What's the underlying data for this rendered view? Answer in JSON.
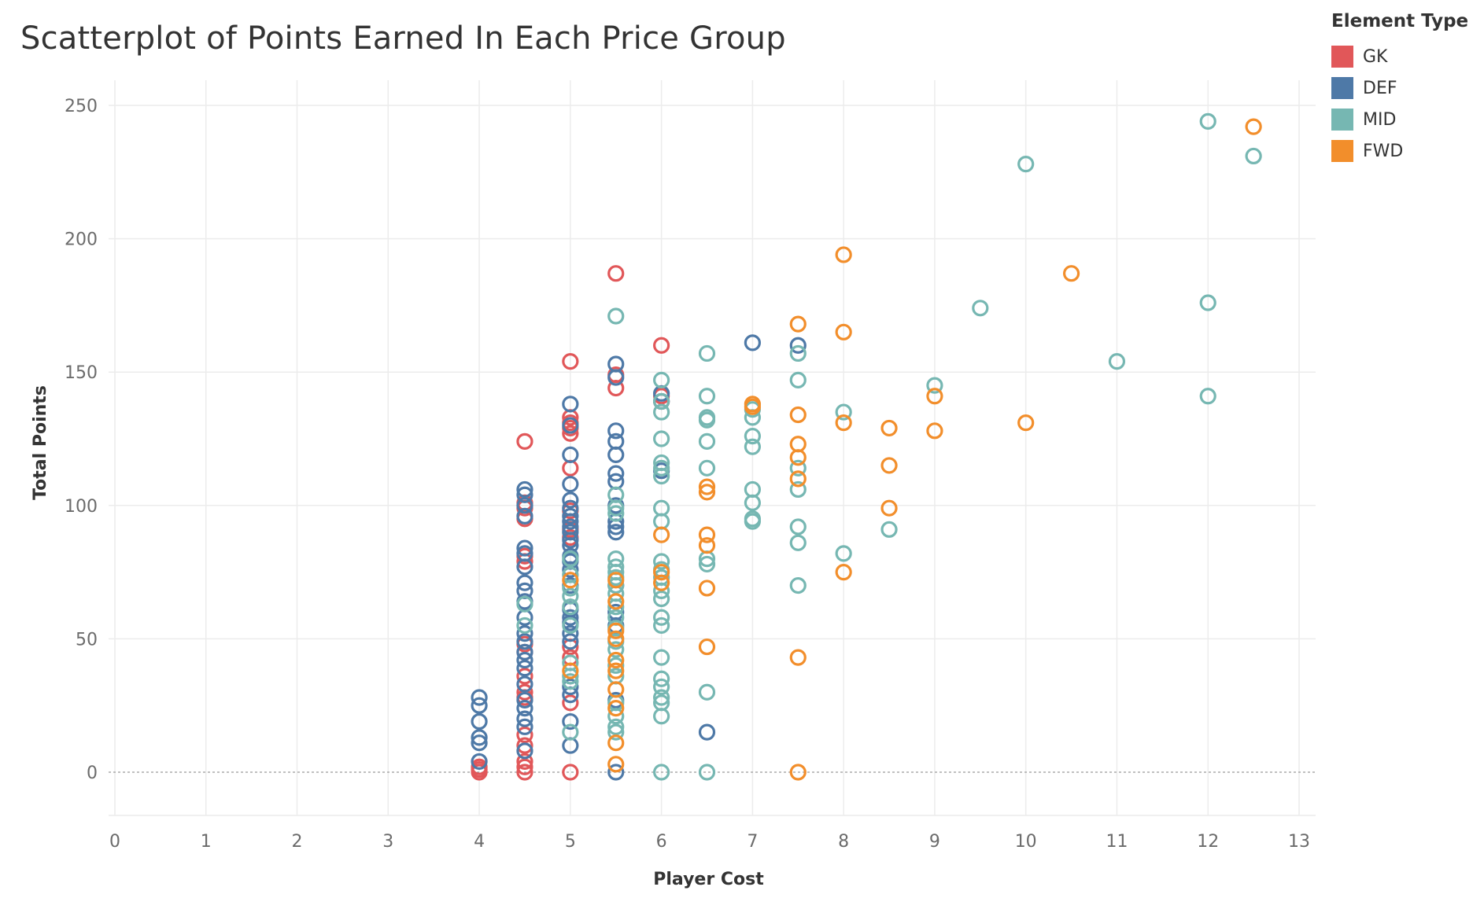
{
  "chart_data": {
    "type": "scatter",
    "title": "Scatterplot of Points Earned In Each Price Group",
    "xlabel": "Player Cost",
    "ylabel": "Total Points",
    "xlim": [
      0,
      13
    ],
    "ylim": [
      -16,
      260
    ],
    "x_ticks": [
      "0",
      "1",
      "2",
      "3",
      "4",
      "5",
      "6",
      "7",
      "8",
      "9",
      "10",
      "11",
      "12",
      "13"
    ],
    "y_ticks": [
      "0",
      "50",
      "100",
      "150",
      "200",
      "250"
    ],
    "grid": true,
    "marker": "open-circle",
    "legend": {
      "title": "Element Type",
      "placement": "top-right"
    },
    "series": [
      {
        "name": "GK",
        "color": "#e15759",
        "points": [
          [
            4,
            0
          ],
          [
            4,
            1
          ],
          [
            4,
            2
          ],
          [
            4.5,
            124
          ],
          [
            4.5,
            101
          ],
          [
            4.5,
            99
          ],
          [
            4.5,
            95
          ],
          [
            4.5,
            81
          ],
          [
            4.5,
            79
          ],
          [
            4.5,
            48
          ],
          [
            4.5,
            45
          ],
          [
            4.5,
            36
          ],
          [
            4.5,
            30
          ],
          [
            4.5,
            28
          ],
          [
            4.5,
            14
          ],
          [
            4.5,
            10
          ],
          [
            4.5,
            4
          ],
          [
            4.5,
            2
          ],
          [
            4.5,
            0
          ],
          [
            5,
            154
          ],
          [
            5,
            133
          ],
          [
            5,
            131
          ],
          [
            5,
            129
          ],
          [
            5,
            127
          ],
          [
            5,
            114
          ],
          [
            5,
            98
          ],
          [
            5,
            91
          ],
          [
            5,
            88
          ],
          [
            5,
            47
          ],
          [
            5,
            43
          ],
          [
            5,
            26
          ],
          [
            5,
            0
          ],
          [
            5.5,
            187
          ],
          [
            5.5,
            149
          ],
          [
            5.5,
            144
          ],
          [
            6,
            160
          ],
          [
            6,
            141
          ],
          [
            6,
            139
          ]
        ]
      },
      {
        "name": "DEF",
        "color": "#4e79a7",
        "points": [
          [
            4,
            28
          ],
          [
            4,
            25
          ],
          [
            4,
            19
          ],
          [
            4,
            13
          ],
          [
            4,
            11
          ],
          [
            4,
            4
          ],
          [
            4.5,
            106
          ],
          [
            4.5,
            104
          ],
          [
            4.5,
            100
          ],
          [
            4.5,
            96
          ],
          [
            4.5,
            84
          ],
          [
            4.5,
            82
          ],
          [
            4.5,
            77
          ],
          [
            4.5,
            71
          ],
          [
            4.5,
            68
          ],
          [
            4.5,
            64
          ],
          [
            4.5,
            58
          ],
          [
            4.5,
            52
          ],
          [
            4.5,
            49
          ],
          [
            4.5,
            45
          ],
          [
            4.5,
            42
          ],
          [
            4.5,
            39
          ],
          [
            4.5,
            33
          ],
          [
            4.5,
            27
          ],
          [
            4.5,
            24
          ],
          [
            4.5,
            20
          ],
          [
            4.5,
            17
          ],
          [
            4.5,
            8
          ],
          [
            5,
            138
          ],
          [
            5,
            130
          ],
          [
            5,
            119
          ],
          [
            5,
            108
          ],
          [
            5,
            102
          ],
          [
            5,
            99
          ],
          [
            5,
            96
          ],
          [
            5,
            94
          ],
          [
            5,
            92
          ],
          [
            5,
            90
          ],
          [
            5,
            87
          ],
          [
            5,
            85
          ],
          [
            5,
            81
          ],
          [
            5,
            79
          ],
          [
            5,
            76
          ],
          [
            5,
            70
          ],
          [
            5,
            61
          ],
          [
            5,
            58
          ],
          [
            5,
            56
          ],
          [
            5,
            52
          ],
          [
            5,
            49
          ],
          [
            5,
            32
          ],
          [
            5,
            29
          ],
          [
            5,
            19
          ],
          [
            5,
            10
          ],
          [
            5.5,
            153
          ],
          [
            5.5,
            148
          ],
          [
            5.5,
            128
          ],
          [
            5.5,
            124
          ],
          [
            5.5,
            119
          ],
          [
            5.5,
            112
          ],
          [
            5.5,
            109
          ],
          [
            5.5,
            100
          ],
          [
            5.5,
            94
          ],
          [
            5.5,
            92
          ],
          [
            5.5,
            90
          ],
          [
            5.5,
            70
          ],
          [
            5.5,
            60
          ],
          [
            5.5,
            55
          ],
          [
            5.5,
            27
          ],
          [
            5.5,
            0
          ],
          [
            6,
            142
          ],
          [
            6,
            139
          ],
          [
            6,
            113
          ],
          [
            6.5,
            15
          ],
          [
            7,
            161
          ],
          [
            7.5,
            160
          ]
        ]
      },
      {
        "name": "MID",
        "color": "#76b7b2",
        "points": [
          [
            4.5,
            63
          ],
          [
            4.5,
            55
          ],
          [
            5,
            80
          ],
          [
            5,
            74
          ],
          [
            5,
            69
          ],
          [
            5,
            66
          ],
          [
            5,
            62
          ],
          [
            5,
            55
          ],
          [
            5,
            41
          ],
          [
            5,
            36
          ],
          [
            5,
            34
          ],
          [
            5,
            15
          ],
          [
            5.5,
            171
          ],
          [
            5.5,
            104
          ],
          [
            5.5,
            99
          ],
          [
            5.5,
            97
          ],
          [
            5.5,
            80
          ],
          [
            5.5,
            77
          ],
          [
            5.5,
            75
          ],
          [
            5.5,
            73
          ],
          [
            5.5,
            70
          ],
          [
            5.5,
            67
          ],
          [
            5.5,
            62
          ],
          [
            5.5,
            58
          ],
          [
            5.5,
            54
          ],
          [
            5.5,
            49
          ],
          [
            5.5,
            46
          ],
          [
            5.5,
            40
          ],
          [
            5.5,
            36
          ],
          [
            5.5,
            26
          ],
          [
            5.5,
            21
          ],
          [
            5.5,
            17
          ],
          [
            5.5,
            15
          ],
          [
            6,
            147
          ],
          [
            6,
            139
          ],
          [
            6,
            135
          ],
          [
            6,
            125
          ],
          [
            6,
            116
          ],
          [
            6,
            114
          ],
          [
            6,
            111
          ],
          [
            6,
            99
          ],
          [
            6,
            94
          ],
          [
            6,
            79
          ],
          [
            6,
            76
          ],
          [
            6,
            73
          ],
          [
            6,
            68
          ],
          [
            6,
            65
          ],
          [
            6,
            58
          ],
          [
            6,
            55
          ],
          [
            6,
            43
          ],
          [
            6,
            35
          ],
          [
            6,
            32
          ],
          [
            6,
            28
          ],
          [
            6,
            26
          ],
          [
            6,
            21
          ],
          [
            6,
            0
          ],
          [
            6.5,
            157
          ],
          [
            6.5,
            141
          ],
          [
            6.5,
            133
          ],
          [
            6.5,
            132
          ],
          [
            6.5,
            124
          ],
          [
            6.5,
            114
          ],
          [
            6.5,
            80
          ],
          [
            6.5,
            78
          ],
          [
            6.5,
            30
          ],
          [
            6.5,
            0
          ],
          [
            7,
            136
          ],
          [
            7,
            133
          ],
          [
            7,
            126
          ],
          [
            7,
            122
          ],
          [
            7,
            106
          ],
          [
            7,
            101
          ],
          [
            7,
            95
          ],
          [
            7,
            94
          ],
          [
            7.5,
            157
          ],
          [
            7.5,
            147
          ],
          [
            7.5,
            114
          ],
          [
            7.5,
            106
          ],
          [
            7.5,
            92
          ],
          [
            7.5,
            86
          ],
          [
            7.5,
            70
          ],
          [
            8,
            135
          ],
          [
            8,
            82
          ],
          [
            8.5,
            91
          ],
          [
            9,
            145
          ],
          [
            9.5,
            174
          ],
          [
            10,
            228
          ],
          [
            11,
            154
          ],
          [
            12,
            244
          ],
          [
            12,
            176
          ],
          [
            12,
            141
          ],
          [
            12.5,
            231
          ]
        ]
      },
      {
        "name": "FWD",
        "color": "#f28e2b",
        "points": [
          [
            5,
            72
          ],
          [
            5,
            38
          ],
          [
            5.5,
            72
          ],
          [
            5.5,
            64
          ],
          [
            5.5,
            53
          ],
          [
            5.5,
            50
          ],
          [
            5.5,
            42
          ],
          [
            5.5,
            38
          ],
          [
            5.5,
            31
          ],
          [
            5.5,
            24
          ],
          [
            5.5,
            11
          ],
          [
            5.5,
            3
          ],
          [
            6,
            89
          ],
          [
            6,
            75
          ],
          [
            6,
            71
          ],
          [
            6.5,
            107
          ],
          [
            6.5,
            105
          ],
          [
            6.5,
            89
          ],
          [
            6.5,
            85
          ],
          [
            6.5,
            69
          ],
          [
            6.5,
            47
          ],
          [
            7,
            138
          ],
          [
            7,
            137
          ],
          [
            7.5,
            168
          ],
          [
            7.5,
            134
          ],
          [
            7.5,
            123
          ],
          [
            7.5,
            118
          ],
          [
            7.5,
            110
          ],
          [
            7.5,
            43
          ],
          [
            7.5,
            0
          ],
          [
            8,
            194
          ],
          [
            8,
            165
          ],
          [
            8,
            131
          ],
          [
            8,
            75
          ],
          [
            8.5,
            129
          ],
          [
            8.5,
            115
          ],
          [
            8.5,
            99
          ],
          [
            9,
            141
          ],
          [
            9,
            128
          ],
          [
            10,
            131
          ],
          [
            10.5,
            187
          ],
          [
            12.5,
            242
          ]
        ]
      }
    ]
  }
}
